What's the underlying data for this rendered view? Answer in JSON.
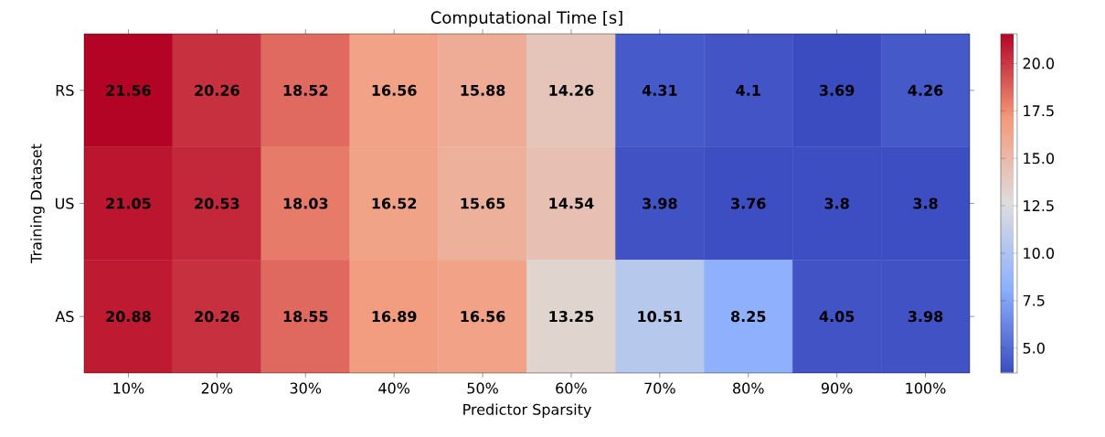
{
  "chart_data": {
    "type": "heatmap",
    "title": "Computational Time [s]",
    "xlabel": "Predictor Sparsity",
    "ylabel": "Training Dataset",
    "categories": [
      "10%",
      "20%",
      "30%",
      "40%",
      "50%",
      "60%",
      "70%",
      "80%",
      "90%",
      "100%"
    ],
    "y_categories": [
      "RS",
      "US",
      "AS"
    ],
    "cells": [
      [
        21.56,
        20.26,
        18.52,
        16.56,
        15.88,
        14.26,
        4.31,
        4.1,
        3.69,
        4.26
      ],
      [
        21.05,
        20.53,
        18.03,
        16.52,
        15.65,
        14.54,
        3.98,
        3.76,
        3.8,
        3.8
      ],
      [
        20.88,
        20.26,
        18.55,
        16.89,
        16.56,
        13.25,
        10.51,
        8.25,
        4.05,
        3.98
      ]
    ],
    "data_labels": true,
    "clim": [
      3.69,
      21.56
    ],
    "cticks": [
      {
        "value": 5,
        "label": "5.0"
      },
      {
        "value": 7.5,
        "label": "7.5"
      },
      {
        "value": 10,
        "label": "10.0"
      },
      {
        "value": 12.5,
        "label": "12.5"
      },
      {
        "value": 15,
        "label": "15.0"
      },
      {
        "value": 17.5,
        "label": "17.5"
      },
      {
        "value": 20,
        "label": "20.0"
      }
    ]
  }
}
